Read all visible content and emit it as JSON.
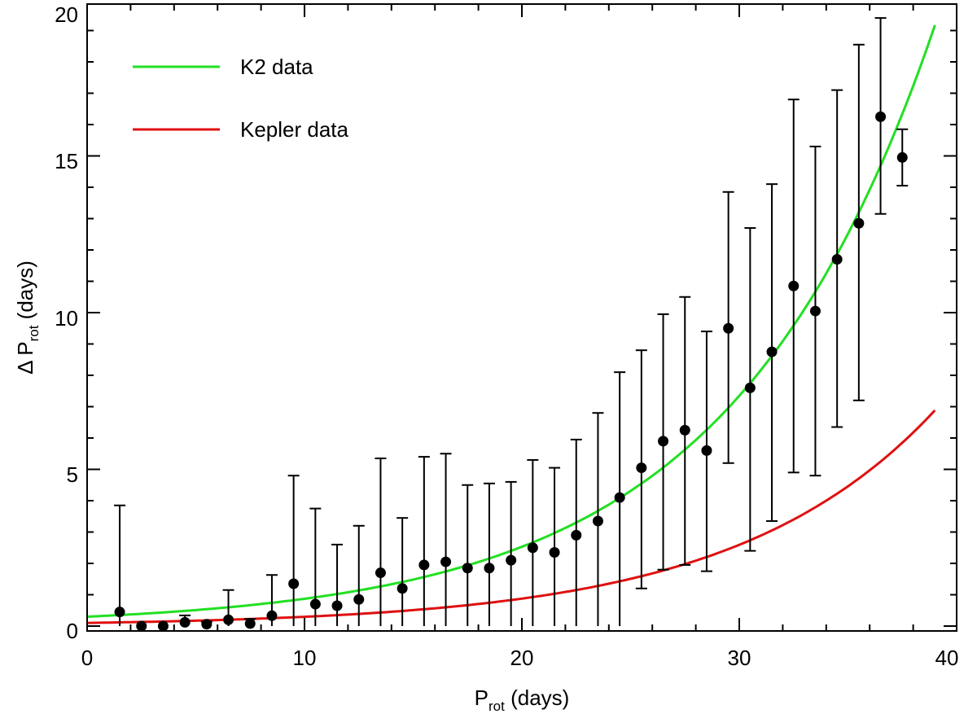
{
  "chart_data": {
    "type": "scatter",
    "xlabel": {
      "main": "P",
      "sub": "rot",
      "rest": " (days)"
    },
    "ylabel": {
      "prefix": "Δ P",
      "sub": "rot",
      "rest": " (days)"
    },
    "xlim": [
      0,
      40
    ],
    "ylim": [
      0,
      20
    ],
    "xticks": [
      0,
      10,
      20,
      30,
      40
    ],
    "yticks": [
      0,
      5,
      10,
      15,
      20
    ],
    "x_tick_labels": [
      "0",
      "10",
      "20",
      "30",
      "40"
    ],
    "y_tick_labels": [
      "0",
      "5",
      "10",
      "15",
      "20"
    ],
    "grid": false,
    "legend_position": "top-left",
    "points": [
      {
        "x": 1.5,
        "y": 0.45,
        "err_low": 0.45,
        "err_high": 3.4
      },
      {
        "x": 2.5,
        "y": 0.0,
        "err_low": 0.0,
        "err_high": 0.0
      },
      {
        "x": 3.5,
        "y": 0.0,
        "err_low": 0.0,
        "err_high": 0.0
      },
      {
        "x": 4.5,
        "y": 0.12,
        "err_low": 0.12,
        "err_high": 0.22
      },
      {
        "x": 5.5,
        "y": 0.06,
        "err_low": 0.06,
        "err_high": 0.08
      },
      {
        "x": 6.5,
        "y": 0.2,
        "err_low": 0.2,
        "err_high": 0.95
      },
      {
        "x": 7.5,
        "y": 0.08,
        "err_low": 0.08,
        "err_high": 0.15
      },
      {
        "x": 8.5,
        "y": 0.33,
        "err_low": 0.33,
        "err_high": 1.3
      },
      {
        "x": 9.5,
        "y": 1.35,
        "err_low": 1.35,
        "err_high": 3.45
      },
      {
        "x": 10.5,
        "y": 0.7,
        "err_low": 0.7,
        "err_high": 3.05
      },
      {
        "x": 11.5,
        "y": 0.65,
        "err_low": 0.65,
        "err_high": 1.95
      },
      {
        "x": 12.5,
        "y": 0.85,
        "err_low": 0.85,
        "err_high": 2.35
      },
      {
        "x": 13.5,
        "y": 1.7,
        "err_low": 1.7,
        "err_high": 3.65
      },
      {
        "x": 14.5,
        "y": 1.2,
        "err_low": 1.2,
        "err_high": 2.25
      },
      {
        "x": 15.5,
        "y": 1.95,
        "err_low": 1.95,
        "err_high": 3.45
      },
      {
        "x": 16.5,
        "y": 2.05,
        "err_low": 2.05,
        "err_high": 3.45
      },
      {
        "x": 17.5,
        "y": 1.85,
        "err_low": 1.85,
        "err_high": 2.65
      },
      {
        "x": 18.5,
        "y": 1.85,
        "err_low": 1.85,
        "err_high": 2.7
      },
      {
        "x": 19.5,
        "y": 2.1,
        "err_low": 2.1,
        "err_high": 2.5
      },
      {
        "x": 20.5,
        "y": 2.5,
        "err_low": 2.5,
        "err_high": 2.8
      },
      {
        "x": 21.5,
        "y": 2.35,
        "err_low": 2.35,
        "err_high": 2.7
      },
      {
        "x": 22.5,
        "y": 2.9,
        "err_low": 2.9,
        "err_high": 3.05
      },
      {
        "x": 23.5,
        "y": 3.35,
        "err_low": 3.35,
        "err_high": 3.45
      },
      {
        "x": 24.5,
        "y": 4.1,
        "err_low": 4.1,
        "err_high": 4.0
      },
      {
        "x": 25.5,
        "y": 5.05,
        "err_low": 3.85,
        "err_high": 3.75
      },
      {
        "x": 26.5,
        "y": 5.9,
        "err_low": 4.1,
        "err_high": 4.05
      },
      {
        "x": 27.5,
        "y": 6.25,
        "err_low": 4.3,
        "err_high": 4.25
      },
      {
        "x": 28.5,
        "y": 5.6,
        "err_low": 3.85,
        "err_high": 3.8
      },
      {
        "x": 29.5,
        "y": 9.5,
        "err_low": 4.3,
        "err_high": 4.35
      },
      {
        "x": 30.5,
        "y": 7.6,
        "err_low": 5.2,
        "err_high": 5.1
      },
      {
        "x": 31.5,
        "y": 8.75,
        "err_low": 5.4,
        "err_high": 5.35
      },
      {
        "x": 32.5,
        "y": 10.85,
        "err_low": 5.95,
        "err_high": 5.95
      },
      {
        "x": 33.5,
        "y": 10.05,
        "err_low": 5.25,
        "err_high": 5.25
      },
      {
        "x": 34.5,
        "y": 11.7,
        "err_low": 5.35,
        "err_high": 5.4
      },
      {
        "x": 35.5,
        "y": 12.85,
        "err_low": 5.65,
        "err_high": 5.7
      },
      {
        "x": 36.5,
        "y": 16.25,
        "err_low": 3.1,
        "err_high": 3.15
      },
      {
        "x": 37.5,
        "y": 14.95,
        "err_low": 0.9,
        "err_high": 0.9
      }
    ],
    "series": [
      {
        "name": "K2 data",
        "color": "#22e022",
        "model": "exp",
        "a": 0.3,
        "b": 0.1066,
        "x_range": [
          0,
          39
        ]
      },
      {
        "name": "Kepler data",
        "color": "#e01010",
        "model": "exp",
        "a": 0.1,
        "b": 0.1085,
        "x_range": [
          0,
          39
        ]
      }
    ]
  }
}
